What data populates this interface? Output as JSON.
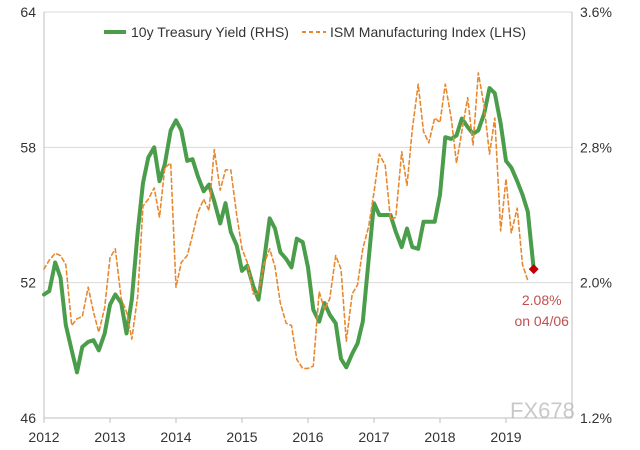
{
  "chart_data": {
    "type": "line",
    "title": "",
    "xlabel": "",
    "ylabel_left": "",
    "ylabel_right": "",
    "x_ticks": [
      "2012",
      "2013",
      "2014",
      "2015",
      "2016",
      "2017",
      "2018",
      "2019"
    ],
    "y_left": {
      "min": 46,
      "max": 64,
      "ticks": [
        "46",
        "52",
        "58",
        "64"
      ]
    },
    "y_right": {
      "min": 1.2,
      "max": 3.6,
      "ticks": [
        "1.2%",
        "2.0%",
        "2.8%",
        "3.6%"
      ]
    },
    "grid": {
      "horizontal": true,
      "vertical": false
    },
    "legend": {
      "placement": "top-center"
    },
    "series": [
      {
        "name": "10y Treasury Yield (RHS)",
        "axis": "right",
        "color": "#4a9d4a",
        "style": "solid",
        "points": [
          [
            2012.0,
            1.93
          ],
          [
            2012.08,
            1.95
          ],
          [
            2012.17,
            2.12
          ],
          [
            2012.25,
            2.03
          ],
          [
            2012.33,
            1.75
          ],
          [
            2012.42,
            1.6
          ],
          [
            2012.5,
            1.47
          ],
          [
            2012.58,
            1.62
          ],
          [
            2012.67,
            1.65
          ],
          [
            2012.75,
            1.66
          ],
          [
            2012.83,
            1.6
          ],
          [
            2012.92,
            1.7
          ],
          [
            2013.0,
            1.87
          ],
          [
            2013.08,
            1.93
          ],
          [
            2013.17,
            1.88
          ],
          [
            2013.25,
            1.7
          ],
          [
            2013.33,
            1.9
          ],
          [
            2013.42,
            2.3
          ],
          [
            2013.5,
            2.59
          ],
          [
            2013.58,
            2.74
          ],
          [
            2013.67,
            2.8
          ],
          [
            2013.75,
            2.6
          ],
          [
            2013.83,
            2.7
          ],
          [
            2013.92,
            2.9
          ],
          [
            2014.0,
            2.96
          ],
          [
            2014.08,
            2.9
          ],
          [
            2014.17,
            2.72
          ],
          [
            2014.25,
            2.73
          ],
          [
            2014.33,
            2.63
          ],
          [
            2014.42,
            2.54
          ],
          [
            2014.5,
            2.58
          ],
          [
            2014.58,
            2.48
          ],
          [
            2014.67,
            2.35
          ],
          [
            2014.75,
            2.47
          ],
          [
            2014.83,
            2.3
          ],
          [
            2014.92,
            2.22
          ],
          [
            2015.0,
            2.07
          ],
          [
            2015.08,
            2.1
          ],
          [
            2015.17,
            1.98
          ],
          [
            2015.25,
            1.9
          ],
          [
            2015.33,
            2.12
          ],
          [
            2015.42,
            2.38
          ],
          [
            2015.5,
            2.32
          ],
          [
            2015.58,
            2.18
          ],
          [
            2015.67,
            2.14
          ],
          [
            2015.75,
            2.09
          ],
          [
            2015.83,
            2.26
          ],
          [
            2015.92,
            2.24
          ],
          [
            2016.0,
            2.09
          ],
          [
            2016.08,
            1.84
          ],
          [
            2016.17,
            1.77
          ],
          [
            2016.25,
            1.88
          ],
          [
            2016.33,
            1.81
          ],
          [
            2016.42,
            1.76
          ],
          [
            2016.5,
            1.55
          ],
          [
            2016.58,
            1.5
          ],
          [
            2016.67,
            1.58
          ],
          [
            2016.75,
            1.64
          ],
          [
            2016.83,
            1.77
          ],
          [
            2016.92,
            2.14
          ],
          [
            2017.0,
            2.47
          ],
          [
            2017.08,
            2.4
          ],
          [
            2017.17,
            2.4
          ],
          [
            2017.25,
            2.4
          ],
          [
            2017.33,
            2.3
          ],
          [
            2017.42,
            2.21
          ],
          [
            2017.5,
            2.32
          ],
          [
            2017.58,
            2.21
          ],
          [
            2017.67,
            2.2
          ],
          [
            2017.75,
            2.36
          ],
          [
            2017.83,
            2.36
          ],
          [
            2017.92,
            2.36
          ],
          [
            2018.0,
            2.52
          ],
          [
            2018.08,
            2.86
          ],
          [
            2018.17,
            2.85
          ],
          [
            2018.25,
            2.87
          ],
          [
            2018.33,
            2.97
          ],
          [
            2018.42,
            2.92
          ],
          [
            2018.5,
            2.88
          ],
          [
            2018.58,
            2.9
          ],
          [
            2018.67,
            3.0
          ],
          [
            2018.75,
            3.15
          ],
          [
            2018.83,
            3.12
          ],
          [
            2018.92,
            2.94
          ],
          [
            2019.0,
            2.72
          ],
          [
            2019.08,
            2.68
          ],
          [
            2019.17,
            2.6
          ],
          [
            2019.25,
            2.52
          ],
          [
            2019.33,
            2.42
          ],
          [
            2019.42,
            2.08
          ]
        ]
      },
      {
        "name": "ISM Manufacturing Index (LHS)",
        "axis": "left",
        "color": "#e8892f",
        "style": "dashed",
        "points": [
          [
            2012.0,
            52.6
          ],
          [
            2012.08,
            53.0
          ],
          [
            2012.17,
            53.3
          ],
          [
            2012.25,
            53.2
          ],
          [
            2012.33,
            52.8
          ],
          [
            2012.42,
            50.1
          ],
          [
            2012.5,
            50.4
          ],
          [
            2012.58,
            50.5
          ],
          [
            2012.67,
            51.8
          ],
          [
            2012.75,
            50.7
          ],
          [
            2012.83,
            49.8
          ],
          [
            2012.92,
            50.9
          ],
          [
            2013.0,
            53.1
          ],
          [
            2013.08,
            53.5
          ],
          [
            2013.17,
            51.3
          ],
          [
            2013.25,
            50.7
          ],
          [
            2013.33,
            49.5
          ],
          [
            2013.42,
            51.4
          ],
          [
            2013.5,
            55.4
          ],
          [
            2013.58,
            55.7
          ],
          [
            2013.67,
            56.2
          ],
          [
            2013.75,
            54.9
          ],
          [
            2013.83,
            57.1
          ],
          [
            2013.92,
            57.3
          ],
          [
            2014.0,
            51.8
          ],
          [
            2014.08,
            52.9
          ],
          [
            2014.17,
            53.2
          ],
          [
            2014.25,
            54.1
          ],
          [
            2014.33,
            55.1
          ],
          [
            2014.42,
            55.7
          ],
          [
            2014.5,
            55.2
          ],
          [
            2014.58,
            57.9
          ],
          [
            2014.67,
            56.1
          ],
          [
            2014.75,
            57.0
          ],
          [
            2014.83,
            57.0
          ],
          [
            2014.92,
            55.0
          ],
          [
            2015.0,
            53.5
          ],
          [
            2015.08,
            52.9
          ],
          [
            2015.17,
            51.5
          ],
          [
            2015.25,
            51.5
          ],
          [
            2015.33,
            52.8
          ],
          [
            2015.42,
            53.5
          ],
          [
            2015.5,
            52.7
          ],
          [
            2015.58,
            51.1
          ],
          [
            2015.67,
            50.2
          ],
          [
            2015.75,
            50.1
          ],
          [
            2015.83,
            48.6
          ],
          [
            2015.92,
            48.2
          ],
          [
            2016.0,
            48.2
          ],
          [
            2016.08,
            48.3
          ],
          [
            2016.17,
            51.6
          ],
          [
            2016.25,
            50.8
          ],
          [
            2016.33,
            51.3
          ],
          [
            2016.42,
            53.2
          ],
          [
            2016.5,
            52.6
          ],
          [
            2016.58,
            49.4
          ],
          [
            2016.67,
            51.5
          ],
          [
            2016.75,
            51.9
          ],
          [
            2016.83,
            53.5
          ],
          [
            2016.92,
            54.5
          ],
          [
            2017.0,
            56.0
          ],
          [
            2017.08,
            57.7
          ],
          [
            2017.17,
            57.2
          ],
          [
            2017.25,
            54.8
          ],
          [
            2017.33,
            54.9
          ],
          [
            2017.42,
            57.8
          ],
          [
            2017.5,
            56.3
          ],
          [
            2017.58,
            58.8
          ],
          [
            2017.67,
            60.8
          ],
          [
            2017.75,
            58.7
          ],
          [
            2017.83,
            58.2
          ],
          [
            2017.92,
            59.3
          ],
          [
            2018.0,
            59.1
          ],
          [
            2018.08,
            60.8
          ],
          [
            2018.17,
            59.3
          ],
          [
            2018.25,
            57.3
          ],
          [
            2018.33,
            58.7
          ],
          [
            2018.42,
            60.2
          ],
          [
            2018.5,
            58.1
          ],
          [
            2018.58,
            61.3
          ],
          [
            2018.67,
            59.8
          ],
          [
            2018.75,
            57.7
          ],
          [
            2018.83,
            59.3
          ],
          [
            2018.92,
            54.3
          ],
          [
            2019.0,
            56.6
          ],
          [
            2019.08,
            54.2
          ],
          [
            2019.17,
            55.3
          ],
          [
            2019.25,
            52.8
          ],
          [
            2019.33,
            52.1
          ]
        ]
      }
    ],
    "annotations": [
      {
        "lines": [
          "2.08%",
          "on 04/06"
        ],
        "color": "#c0504d",
        "anchor": [
          2019.42,
          2.08
        ]
      }
    ]
  },
  "watermark": "FX678"
}
